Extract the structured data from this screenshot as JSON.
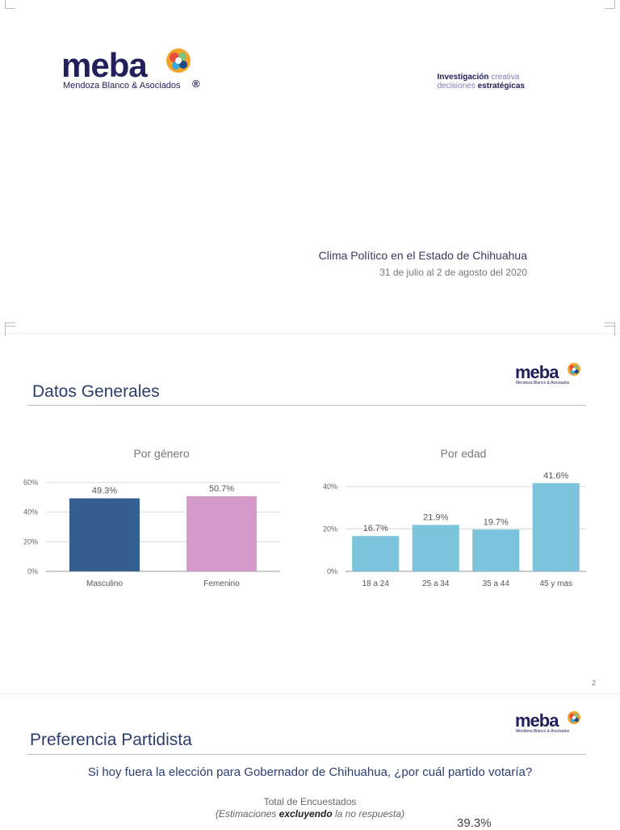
{
  "cover": {
    "logo_word": "meba",
    "logo_sub": "Mendoza Blanco & Asociados",
    "logo_reg": "®",
    "tagline_1_bold": "Investigación",
    "tagline_1_light": "creativa",
    "tagline_2_light": "decisiones",
    "tagline_2_bold": "estratégicas",
    "title": "Clima Político en el Estado de Chihuahua",
    "date": "31 de julio al 2 de agosto del 2020"
  },
  "slide2": {
    "logo_word": "meba",
    "logo_sub": "Mendoza Blanco & Asociados",
    "section_title": "Datos Generales",
    "page_number": "2"
  },
  "chart_data": [
    {
      "type": "bar",
      "title": "Por género",
      "categories": [
        "Masculino",
        "Femenino"
      ],
      "values": [
        49.3,
        50.7
      ],
      "labels": [
        "49.3%",
        "50.7%"
      ],
      "yticks": [
        "0%",
        "20%",
        "40%",
        "60%"
      ],
      "ylim": [
        0,
        60
      ],
      "colors": [
        "#365f91",
        "#d399c9"
      ],
      "grid": true
    },
    {
      "type": "bar",
      "title": "Por edad",
      "categories": [
        "18 a 24",
        "25 a 34",
        "35 a 44",
        "45 y mas"
      ],
      "values": [
        16.7,
        21.9,
        19.7,
        41.6
      ],
      "labels": [
        "16.7%",
        "21.9%",
        "19.7%",
        "41.6%"
      ],
      "yticks": [
        "0%",
        "20%",
        "40%"
      ],
      "ylim": [
        0,
        40
      ],
      "colors": [
        "#7bc4dc"
      ],
      "grid": true
    }
  ],
  "slide3": {
    "logo_word": "meba",
    "logo_sub": "Mendoza Blanco & Asociados",
    "section_title": "Preferencia Partidista",
    "question": "Si hoy fuera la elección para Gobernador de Chihuahua, ¿por cuál partido votaría?",
    "subtitle": "Total de Encuestados",
    "note_pre": "(Estimaciones ",
    "note_bold": "excluyendo",
    "note_post": " la no respuesta)",
    "visible_value": "39.3%"
  }
}
